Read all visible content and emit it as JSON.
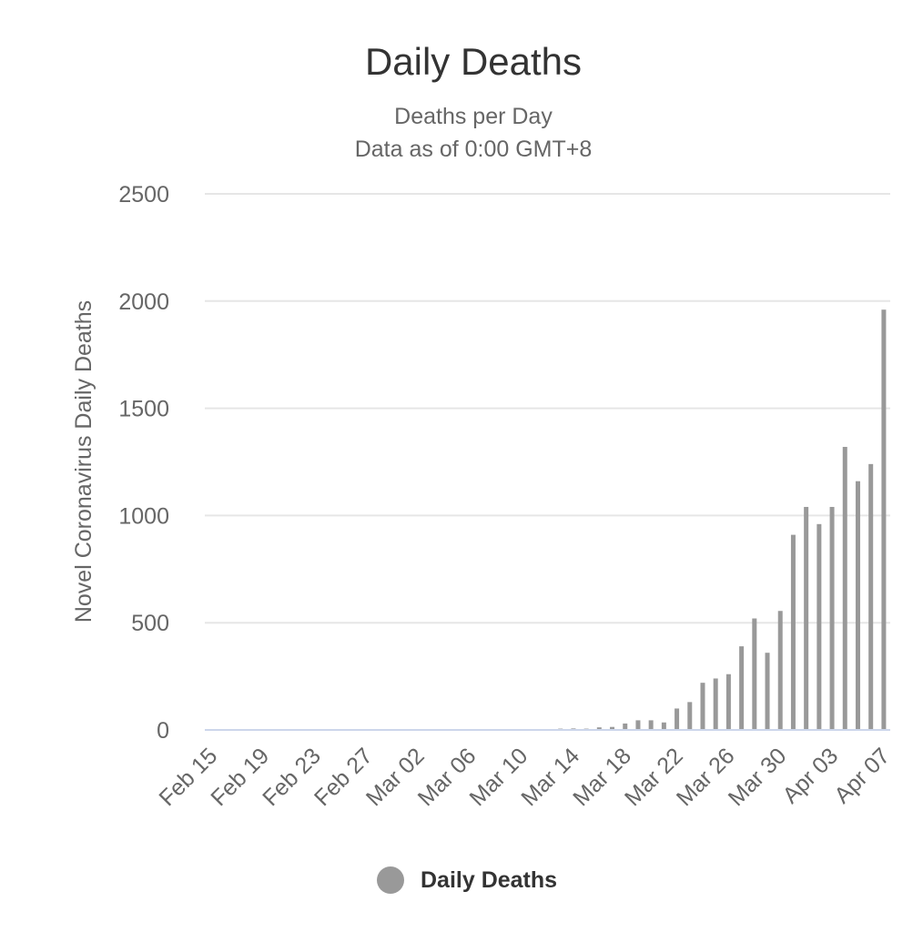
{
  "chart_data": {
    "type": "bar",
    "title": "Daily Deaths",
    "subtitle": [
      "Deaths per Day",
      "Data as of 0:00 GMT+8"
    ],
    "ylabel": "Novel Coronavirus Daily Deaths",
    "xlabel": "",
    "ylim": [
      0,
      2500
    ],
    "yticks": [
      0,
      500,
      1000,
      1500,
      2000,
      2500
    ],
    "xticks": [
      "Feb 15",
      "Feb 19",
      "Feb 23",
      "Feb 27",
      "Mar 02",
      "Mar 06",
      "Mar 10",
      "Mar 14",
      "Mar 18",
      "Mar 22",
      "Mar 26",
      "Mar 30",
      "Apr 03",
      "Apr 07"
    ],
    "categories": [
      "Feb 15",
      "Feb 16",
      "Feb 17",
      "Feb 18",
      "Feb 19",
      "Feb 20",
      "Feb 21",
      "Feb 22",
      "Feb 23",
      "Feb 24",
      "Feb 25",
      "Feb 26",
      "Feb 27",
      "Feb 28",
      "Feb 29",
      "Mar 01",
      "Mar 02",
      "Mar 03",
      "Mar 04",
      "Mar 05",
      "Mar 06",
      "Mar 07",
      "Mar 08",
      "Mar 09",
      "Mar 10",
      "Mar 11",
      "Mar 12",
      "Mar 13",
      "Mar 14",
      "Mar 15",
      "Mar 16",
      "Mar 17",
      "Mar 18",
      "Mar 19",
      "Mar 20",
      "Mar 21",
      "Mar 22",
      "Mar 23",
      "Mar 24",
      "Mar 25",
      "Mar 26",
      "Mar 27",
      "Mar 28",
      "Mar 29",
      "Mar 30",
      "Mar 31",
      "Apr 01",
      "Apr 02",
      "Apr 03",
      "Apr 04",
      "Apr 05",
      "Apr 06",
      "Apr 07"
    ],
    "series": [
      {
        "name": "Daily Deaths",
        "color": "#999999",
        "values": [
          0,
          0,
          0,
          0,
          0,
          0,
          0,
          0,
          0,
          0,
          0,
          0,
          0,
          0,
          0,
          1,
          0,
          1,
          2,
          1,
          2,
          3,
          2,
          2,
          3,
          3,
          4,
          6,
          7,
          6,
          12,
          14,
          30,
          45,
          45,
          35,
          100,
          130,
          220,
          240,
          260,
          390,
          520,
          360,
          555,
          910,
          1040,
          960,
          1040,
          1320,
          1160,
          1240,
          1960
        ]
      }
    ],
    "grid": true,
    "legend": "bottom-center"
  }
}
